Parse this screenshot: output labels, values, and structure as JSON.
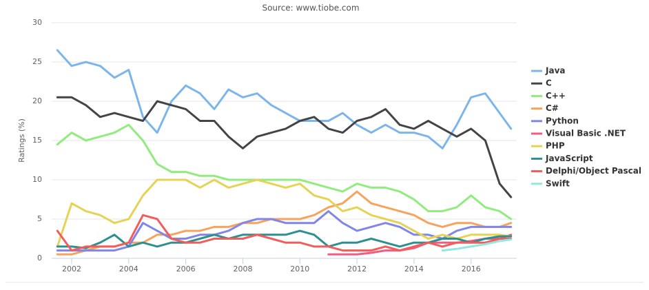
{
  "chart_data": {
    "type": "line",
    "title": "Source: www.tiobe.com",
    "y_label": "Ratings (%)",
    "x": [
      2001.5,
      2002,
      2002.5,
      2003,
      2003.5,
      2004,
      2004.5,
      2005,
      2005.5,
      2006,
      2006.5,
      2007,
      2007.5,
      2008,
      2008.5,
      2009,
      2009.5,
      2010,
      2010.5,
      2011,
      2011.5,
      2012,
      2012.5,
      2013,
      2013.5,
      2014,
      2014.5,
      2015,
      2015.5,
      2016,
      2016.5,
      2017,
      2017.4
    ],
    "xlim": [
      2001.3,
      2017.6
    ],
    "xticks": [
      2002,
      2004,
      2006,
      2008,
      2010,
      2012,
      2014,
      2016
    ],
    "ylim": [
      0,
      30
    ],
    "yticks": [
      0,
      5,
      10,
      15,
      20,
      25,
      30
    ],
    "grid": true,
    "legend": "right",
    "series": [
      {
        "name": "Java",
        "color": "#7cb5ec",
        "values": [
          26.5,
          24.5,
          25,
          24.5,
          23,
          24,
          18,
          16,
          20,
          22,
          21,
          19,
          21.5,
          20.5,
          21,
          19.5,
          18.5,
          17.5,
          17.5,
          17.5,
          18.5,
          17,
          16,
          17,
          16,
          16,
          15.5,
          14,
          17,
          20.5,
          21,
          18.5,
          16.5
        ]
      },
      {
        "name": "C",
        "color": "#434348",
        "values": [
          20.5,
          20.5,
          19.5,
          18,
          18.5,
          18,
          17.5,
          20,
          19.5,
          19,
          17.5,
          17.5,
          15.5,
          14,
          15.5,
          16,
          16.5,
          17.5,
          18,
          16.5,
          16,
          17.5,
          18,
          19,
          17,
          16.5,
          17.5,
          16.5,
          15.5,
          16.5,
          15,
          9.5,
          7.8
        ]
      },
      {
        "name": "C++",
        "color": "#90ed7d",
        "values": [
          14.5,
          16,
          15,
          15.5,
          16,
          17,
          15,
          12,
          11,
          11,
          10.5,
          10.5,
          10,
          10,
          10,
          10,
          10,
          10,
          9.5,
          9,
          8.5,
          9.5,
          9,
          9,
          8.5,
          7.5,
          6,
          6,
          6.5,
          8,
          6.5,
          6,
          5
        ]
      },
      {
        "name": "C#",
        "color": "#f7a35c",
        "values": [
          0.5,
          0.5,
          1,
          1.5,
          1.5,
          2,
          2,
          3,
          3,
          3.5,
          3.5,
          4,
          4,
          4.5,
          4.5,
          5,
          5,
          5,
          5.5,
          6.5,
          7,
          8.5,
          7,
          6.5,
          6,
          5.5,
          4.5,
          4,
          4.5,
          4.5,
          4,
          4,
          4.5
        ]
      },
      {
        "name": "Python",
        "color": "#8085e9",
        "values": [
          1,
          1,
          1,
          1,
          1,
          1.5,
          4.5,
          3.5,
          2.5,
          2.5,
          3,
          3,
          3.5,
          4.5,
          5,
          5,
          4.5,
          4.5,
          4.5,
          6,
          4.5,
          3.5,
          4,
          4.5,
          4,
          3,
          3,
          2.5,
          3.5,
          4,
          4,
          4,
          4
        ]
      },
      {
        "name": "Visual Basic .NET",
        "color": "#f15c80",
        "values": [
          null,
          null,
          null,
          null,
          null,
          null,
          null,
          null,
          null,
          null,
          null,
          null,
          null,
          null,
          null,
          null,
          null,
          null,
          null,
          0.5,
          0.5,
          0.5,
          0.7,
          1,
          1,
          1.3,
          2,
          2,
          2,
          2.2,
          2.5,
          2.5,
          3
        ]
      },
      {
        "name": "PHP",
        "color": "#e4d354",
        "values": [
          1.5,
          7,
          6,
          5.5,
          4.5,
          5,
          8,
          10,
          10,
          10,
          9,
          10,
          9,
          9.5,
          10,
          9.5,
          9,
          9.5,
          8,
          7.5,
          6,
          6.5,
          5.5,
          5,
          4.5,
          3.5,
          2.5,
          3,
          2.5,
          3,
          3,
          3,
          2.8
        ]
      },
      {
        "name": "JavaScript",
        "color": "#2b908f",
        "values": [
          1.5,
          1.5,
          1.3,
          2,
          3,
          1.5,
          2,
          1.5,
          2,
          2,
          2.5,
          3,
          2.5,
          3,
          3,
          3,
          3,
          3.5,
          3,
          1.5,
          2,
          2,
          2.5,
          2,
          1.5,
          2,
          2,
          2.5,
          2.5,
          2,
          2.5,
          2.8,
          2.8
        ]
      },
      {
        "name": "Delphi/Object Pascal",
        "color": "#f45b5b",
        "values": [
          3.5,
          1,
          1.5,
          1.5,
          1.5,
          2,
          5.5,
          5,
          2.5,
          2,
          2,
          2.5,
          2.5,
          2.5,
          3,
          2.5,
          2,
          2,
          1.5,
          1.5,
          1,
          1,
          1,
          1.5,
          1,
          1.5,
          2,
          1.5,
          2,
          2,
          2,
          2.5,
          2.5
        ]
      },
      {
        "name": "Swift",
        "color": "#91e8e1",
        "values": [
          null,
          null,
          null,
          null,
          null,
          null,
          null,
          null,
          null,
          null,
          null,
          null,
          null,
          null,
          null,
          null,
          null,
          null,
          null,
          null,
          null,
          null,
          null,
          null,
          null,
          null,
          null,
          1,
          1.2,
          1.5,
          1.8,
          2.2,
          2.4
        ]
      }
    ]
  }
}
